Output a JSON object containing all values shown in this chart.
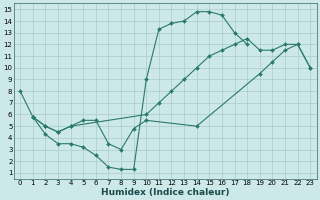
{
  "xlabel": "Humidex (Indice chaleur)",
  "xlim": [
    -0.5,
    23.5
  ],
  "ylim": [
    0.5,
    15.5
  ],
  "xticks": [
    0,
    1,
    2,
    3,
    4,
    5,
    6,
    7,
    8,
    9,
    10,
    11,
    12,
    13,
    14,
    15,
    16,
    17,
    18,
    19,
    20,
    21,
    22,
    23
  ],
  "yticks": [
    1,
    2,
    3,
    4,
    5,
    6,
    7,
    8,
    9,
    10,
    11,
    12,
    13,
    14,
    15
  ],
  "bg_color": "#cce8e8",
  "grid_color": "#aacccc",
  "line_color": "#2a7a6a",
  "curve1_x": [
    0,
    1,
    2,
    3,
    4,
    5,
    6,
    7,
    8,
    9,
    10,
    11,
    12,
    13,
    14,
    15,
    16,
    17,
    18
  ],
  "curve1_y": [
    8.0,
    5.8,
    4.3,
    3.5,
    3.5,
    3.2,
    2.5,
    1.5,
    1.3,
    1.3,
    9.0,
    13.3,
    13.8,
    14.0,
    14.8,
    14.8,
    14.5,
    13.0,
    12.0
  ],
  "curve2_x": [
    1,
    2,
    3,
    4,
    5,
    6,
    7,
    8,
    9,
    10,
    14,
    19,
    20,
    21,
    22,
    23
  ],
  "curve2_y": [
    5.8,
    5.0,
    4.5,
    5.0,
    5.5,
    5.5,
    3.5,
    3.0,
    4.8,
    5.5,
    5.0,
    9.5,
    10.5,
    11.5,
    12.0,
    10.0
  ],
  "curve3_x": [
    1,
    2,
    3,
    4,
    10,
    11,
    12,
    13,
    14,
    15,
    16,
    17,
    18,
    19,
    20,
    21,
    22,
    23
  ],
  "curve3_y": [
    5.8,
    5.0,
    4.5,
    5.0,
    6.0,
    7.0,
    8.0,
    9.0,
    10.0,
    11.0,
    11.5,
    12.0,
    12.5,
    11.5,
    11.5,
    12.0,
    12.0,
    10.0
  ],
  "tick_fontsize": 5.0,
  "xlabel_fontsize": 6.5,
  "marker_size": 2.0,
  "linewidth": 0.8
}
